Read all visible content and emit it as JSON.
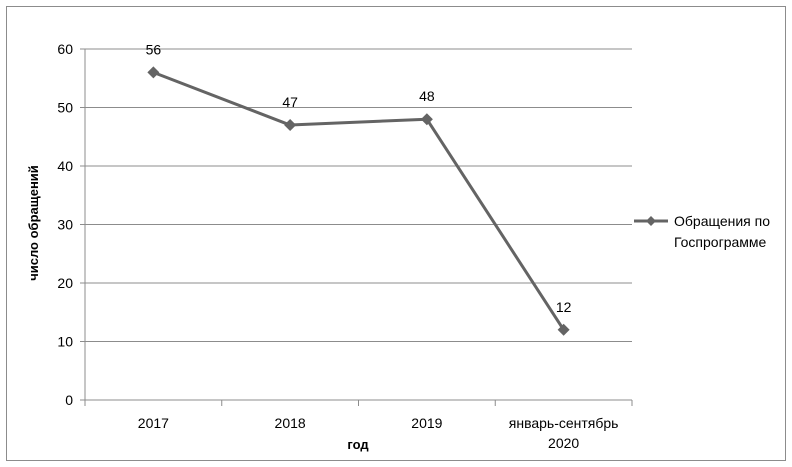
{
  "chart_data": {
    "type": "line",
    "categories": [
      "2017",
      "2018",
      "2019",
      "январь-сентябрь 2020"
    ],
    "category_lines": [
      [
        "2017"
      ],
      [
        "2018"
      ],
      [
        "2019"
      ],
      [
        "январь-сентябрь",
        "2020"
      ]
    ],
    "series": [
      {
        "name_lines": [
          "Обращения по",
          "Госпрограмме"
        ],
        "values": [
          56,
          47,
          48,
          12
        ],
        "color": "#646464",
        "marker": "diamond"
      }
    ],
    "xlabel": "год",
    "ylabel": "число обращений",
    "ylim": [
      0,
      60
    ],
    "yticks": [
      0,
      10,
      20,
      30,
      40,
      50,
      60
    ],
    "grid": true,
    "legend_position": "right",
    "data_labels": true
  }
}
